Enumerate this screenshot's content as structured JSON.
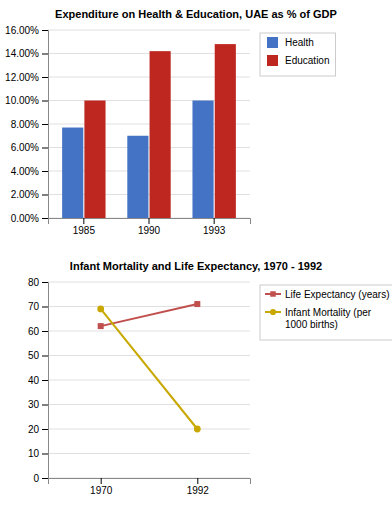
{
  "chart_data": [
    {
      "type": "bar",
      "title": "Expenditure on Health & Education, UAE as % of GDP",
      "categories": [
        "1985",
        "1990",
        "1993"
      ],
      "series": [
        {
          "name": "Health",
          "color": "#4472C4",
          "values": [
            0.077,
            0.07,
            0.1
          ]
        },
        {
          "name": "Education",
          "color": "#BE2720",
          "values": [
            0.1,
            0.142,
            0.148
          ]
        }
      ],
      "ylim": [
        0,
        0.16
      ],
      "yticks": [
        {
          "value": 0.0,
          "label": "0.00%"
        },
        {
          "value": 0.02,
          "label": "2.00%"
        },
        {
          "value": 0.04,
          "label": "4.00%"
        },
        {
          "value": 0.06,
          "label": "6.00%"
        },
        {
          "value": 0.08,
          "label": "8.00%"
        },
        {
          "value": 0.1,
          "label": "10.00%"
        },
        {
          "value": 0.12,
          "label": "12.00%"
        },
        {
          "value": 0.14,
          "label": "14.00%"
        },
        {
          "value": 0.16,
          "label": "16.00%"
        }
      ],
      "grid": true,
      "legend": "right"
    },
    {
      "type": "line",
      "title": "Infant Mortality and Life Expectancy, 1970 - 1992",
      "x": [
        1970,
        1992
      ],
      "xlim": [
        1958,
        2004
      ],
      "xticks": [
        1970,
        1992
      ],
      "series": [
        {
          "name": "Life Expectancy (years)",
          "color": "#C0504D",
          "marker": "square",
          "values": [
            62,
            71
          ]
        },
        {
          "name": "Infant Mortality  (per\n1000 births)",
          "color": "#C8A800",
          "marker": "circle",
          "values": [
            69,
            20
          ]
        }
      ],
      "ylim": [
        0,
        80
      ],
      "yticks": [
        0,
        10,
        20,
        30,
        40,
        50,
        60,
        70,
        80
      ],
      "grid": true,
      "legend": "right"
    }
  ]
}
